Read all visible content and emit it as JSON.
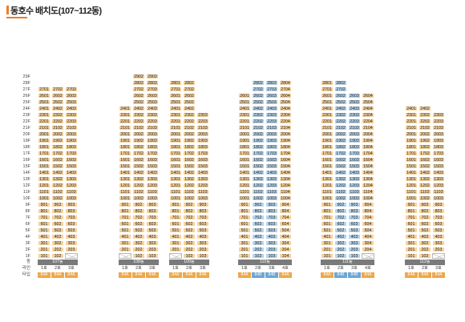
{
  "title": "동호수 배치도(107~112동)",
  "floors": [
    "29F",
    "28F",
    "27F",
    "26F",
    "25F",
    "24F",
    "23F",
    "22F",
    "21F",
    "20F",
    "19F",
    "18F",
    "17F",
    "16F",
    "15F",
    "14F",
    "13F",
    "12F",
    "11F",
    "10F",
    "9F",
    "8F",
    "7F",
    "6F",
    "5F",
    "4F",
    "3F",
    "2F",
    "1F"
  ],
  "row_labels": {
    "dong": "동",
    "line": "라인",
    "type": "타입"
  },
  "colors": {
    "orange": "#f6d39f",
    "blue": "#b8d4ea",
    "orange_type": "#eea84a",
    "blue_type": "#6ea6d4",
    "bar": "#7a7a7a",
    "accent": "#ef7d22"
  },
  "buildings": [
    {
      "name": "107동",
      "lines": [
        "1호",
        "2호",
        "3호"
      ],
      "types": [
        "84A",
        "84A",
        "84A"
      ],
      "type_colors": [
        "orange",
        "orange",
        "orange"
      ],
      "color": "orange",
      "top_floors": [
        27,
        27,
        27
      ],
      "x_floors": [
        [],
        [],
        [
          1
        ]
      ]
    },
    {
      "name": "108동",
      "lines": [
        "1호",
        "2호",
        "3호"
      ],
      "types": [
        "84A",
        "84A",
        "84A"
      ],
      "type_colors": [
        "orange",
        "orange",
        "orange"
      ],
      "color": "orange",
      "top_floors": [
        24,
        29,
        29
      ],
      "x_floors": [
        [
          1
        ],
        [],
        []
      ]
    },
    {
      "name": "109동",
      "lines": [
        "1호",
        "2호",
        "3호"
      ],
      "types": [
        "84A",
        "84A",
        "84A"
      ],
      "type_colors": [
        "orange",
        "orange",
        "orange"
      ],
      "color": "orange",
      "top_floors": [
        28,
        28,
        23
      ],
      "x_floors": [
        [
          1
        ],
        [],
        []
      ]
    },
    {
      "name": "110동",
      "lines": [
        "1호",
        "2호",
        "3호",
        "4호"
      ],
      "types": [
        "84A",
        "84B",
        "84B",
        "84A"
      ],
      "type_colors": [
        "orange",
        "blue",
        "blue",
        "orange"
      ],
      "color": "mixed",
      "top_floors": [
        26,
        28,
        28,
        28
      ],
      "x_floors": [
        [],
        [],
        [],
        []
      ]
    },
    {
      "name": "111동",
      "lines": [
        "1호",
        "2호",
        "3호",
        "4호"
      ],
      "types": [
        "84A",
        "84B",
        "84B",
        "84A"
      ],
      "type_colors": [
        "orange",
        "blue",
        "blue",
        "orange"
      ],
      "color": "mixed",
      "top_floors": [
        28,
        28,
        26,
        26
      ],
      "x_floors": [
        [],
        [],
        [],
        [
          1
        ]
      ]
    },
    {
      "name": "112동",
      "lines": [
        "1호",
        "2호",
        "3호"
      ],
      "types": [
        "84A",
        "84A",
        "84A"
      ],
      "type_colors": [
        "orange",
        "orange",
        "orange"
      ],
      "color": "orange",
      "top_floors": [
        24,
        24,
        23
      ],
      "x_floors": [
        [],
        [],
        [
          1
        ]
      ]
    }
  ]
}
